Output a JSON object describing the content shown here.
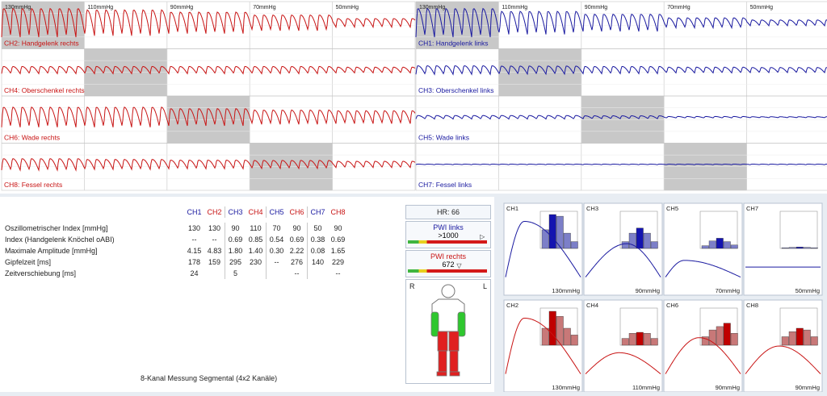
{
  "waveforms": {
    "column_labels": [
      "130mmHg",
      "110mmHg",
      "90mmHg",
      "70mmHg",
      "50mmHg"
    ],
    "channels_left": [
      "CH2: Handgelenk rechts",
      "CH4: Oberschenkel rechts",
      "CH6: Wade rechts",
      "CH8: Fessel rechts"
    ],
    "channels_right": [
      "CH1: Handgelenk links",
      "CH3: Oberschenkel links",
      "CH5: Wade links",
      "CH7: Fessel links"
    ]
  },
  "table": {
    "headers": [
      "CH1",
      "CH2",
      "CH3",
      "CH4",
      "CH5",
      "CH6",
      "CH7",
      "CH8"
    ],
    "header_colors": [
      "#1a1aa0",
      "#c81414",
      "#1a1aa0",
      "#c81414",
      "#1a1aa0",
      "#c81414",
      "#1a1aa0",
      "#c81414"
    ],
    "rows": [
      {
        "label": "Oszillometrischer Index [mmHg]",
        "values": [
          "130",
          "130",
          "90",
          "110",
          "70",
          "90",
          "50",
          "90"
        ]
      },
      {
        "label": "Index (Handgelenk Knöchel oABI)",
        "values": [
          "--",
          "--",
          "0.69",
          "0.85",
          "0.54",
          "0.69",
          "0.38",
          "0.69"
        ]
      },
      {
        "label": "Maximale Amplitude [mmHg]",
        "values": [
          "4.15",
          "4.83",
          "1.80",
          "1.40",
          "0.30",
          "2.22",
          "0.08",
          "1.65"
        ]
      },
      {
        "label": "Gipfelzeit [ms]",
        "values": [
          "178",
          "159",
          "295",
          "230",
          "--",
          "276",
          "140",
          "229"
        ]
      },
      {
        "label": "Zeitverschiebung [ms]",
        "values": [
          "24",
          "",
          "5",
          "",
          "",
          "--",
          "",
          "--"
        ]
      }
    ],
    "footer": "8-Kanal Messung Segmental (4x2 Kanäle)"
  },
  "status": {
    "hr_label": "HR:",
    "hr_value": "66",
    "pwi_left_title": "PWI links",
    "pwi_left_value": ">1000",
    "pwi_left_level": 0.97,
    "pwi_right_title": "PWI rechts",
    "pwi_right_value": "672",
    "pwi_right_level": 0.67,
    "body_left_label": "R",
    "body_right_label": "L"
  },
  "mini_charts": [
    {
      "channel": "CH1",
      "pressure": "130mmHg",
      "color": "blue",
      "bars": [
        0.55,
        1,
        0.95,
        0.45,
        0.2
      ]
    },
    {
      "channel": "CH3",
      "pressure": "90mmHg",
      "color": "blue",
      "bars": [
        0.2,
        0.45,
        0.6,
        0.45,
        0.2
      ]
    },
    {
      "channel": "CH5",
      "pressure": "70mmHg",
      "color": "blue",
      "bars": [
        0.08,
        0.22,
        0.3,
        0.2,
        0.1
      ]
    },
    {
      "channel": "CH7",
      "pressure": "50mmHg",
      "color": "blue",
      "bars": [
        0.02,
        0.03,
        0.04,
        0.03,
        0.02
      ]
    },
    {
      "channel": "CH2",
      "pressure": "130mmHg",
      "color": "red",
      "bars": [
        0.5,
        1,
        0.85,
        0.5,
        0.3
      ]
    },
    {
      "channel": "CH4",
      "pressure": "110mmHg",
      "color": "red",
      "bars": [
        0.2,
        0.35,
        0.38,
        0.35,
        0.2
      ]
    },
    {
      "channel": "CH6",
      "pressure": "90mmHg",
      "color": "red",
      "bars": [
        0.25,
        0.45,
        0.55,
        0.65,
        0.35
      ]
    },
    {
      "channel": "CH8",
      "pressure": "90mmHg",
      "color": "red",
      "bars": [
        0.25,
        0.4,
        0.5,
        0.45,
        0.25
      ]
    }
  ],
  "colors": {
    "red": "#c81414",
    "blue": "#1a1aa0",
    "grey": "#c8c8c8"
  }
}
